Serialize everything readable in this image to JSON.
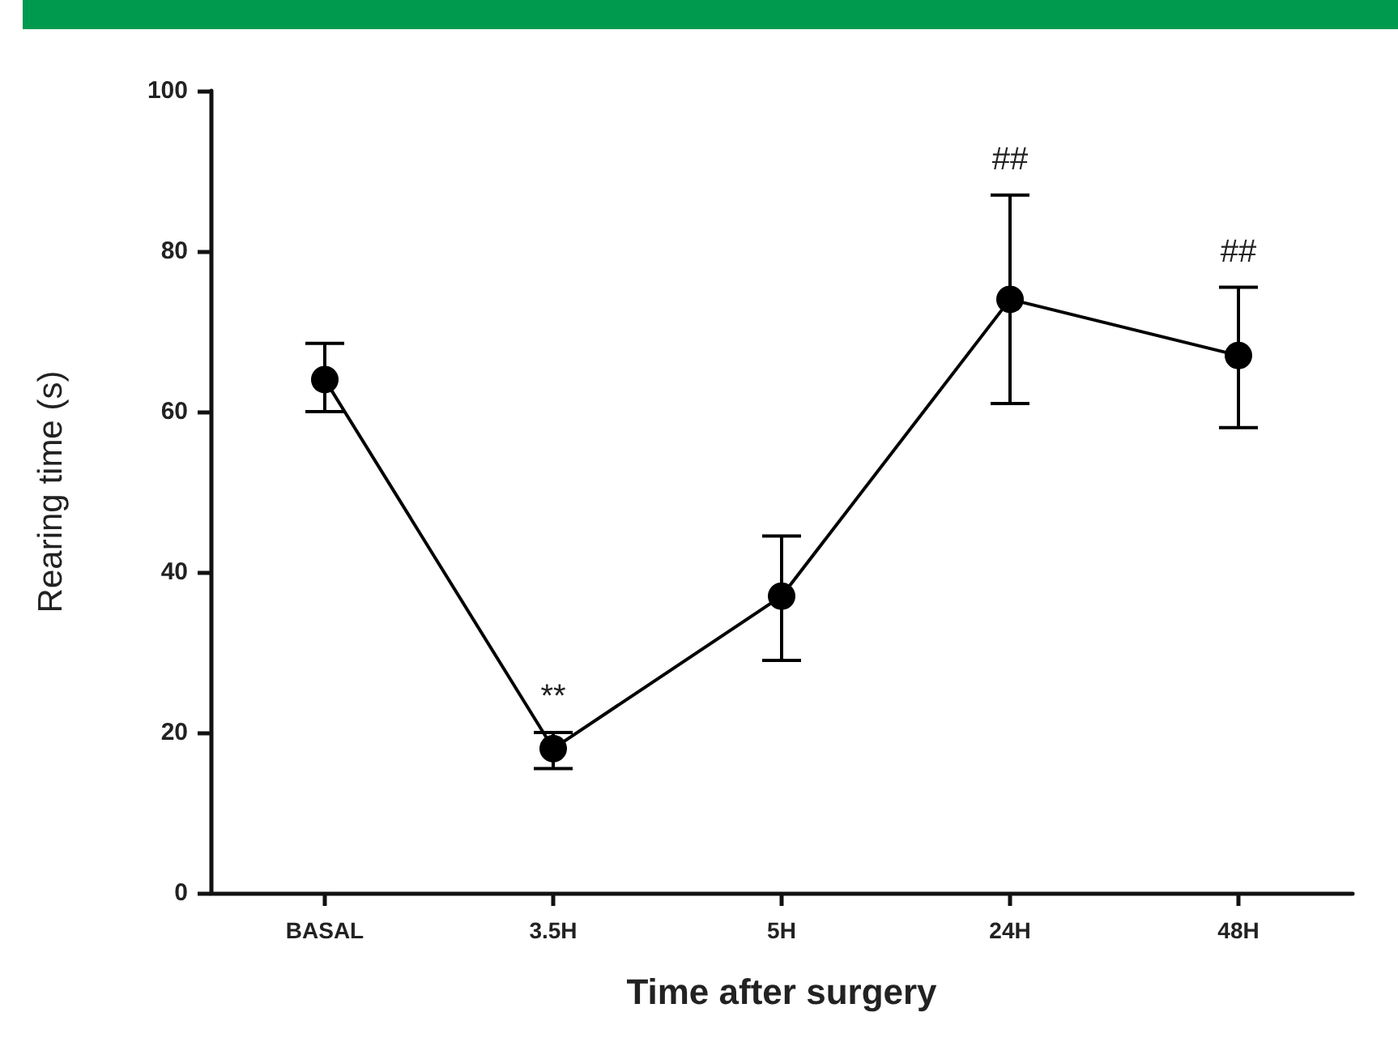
{
  "chart_data": {
    "type": "line",
    "xlabel": "Time after surgery",
    "ylabel": "Rearing time (s)",
    "categories": [
      "BASAL",
      "3.5H",
      "5H",
      "24H",
      "48H"
    ],
    "series": [
      {
        "color": "#000000",
        "values": [
          64,
          18,
          37,
          74,
          67
        ],
        "errors": [
          [
            60,
            68.5
          ],
          [
            15.5,
            20
          ],
          [
            29,
            44.5
          ],
          [
            61,
            87
          ],
          [
            58,
            75.5
          ]
        ]
      }
    ],
    "ylim": [
      0,
      100
    ],
    "yticks": [
      0,
      20,
      40,
      60,
      80,
      100
    ],
    "grid": false,
    "marker": "circle",
    "line_style": "solid",
    "annotations": [
      {
        "text": "**",
        "x": "3.5H",
        "y": 20
      },
      {
        "text": "##",
        "x": "24H",
        "y": 87
      },
      {
        "text": "##",
        "x": "48H",
        "y": 75.5
      }
    ]
  }
}
